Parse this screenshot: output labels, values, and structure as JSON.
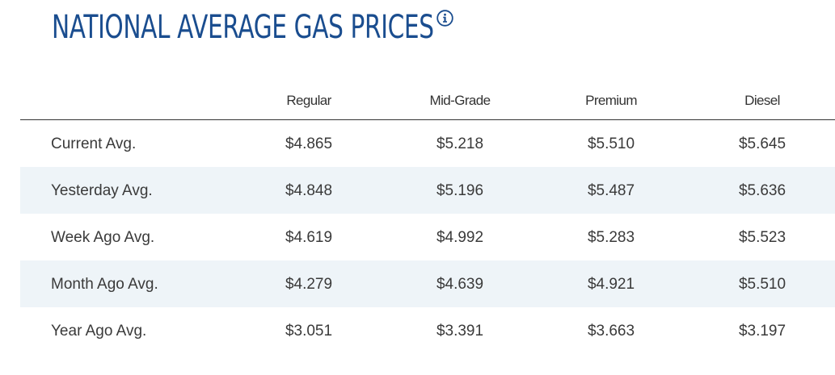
{
  "header": {
    "title": "NATIONAL AVERAGE GAS PRICES",
    "info_icon": "info-circle-icon",
    "title_color": "#1a4d8f"
  },
  "table": {
    "columns": [
      "",
      "Regular",
      "Mid-Grade",
      "Premium",
      "Diesel"
    ],
    "rows": [
      {
        "label": "Current Avg.",
        "values": [
          "$4.865",
          "$5.218",
          "$5.510",
          "$5.645"
        ]
      },
      {
        "label": "Yesterday Avg.",
        "values": [
          "$4.848",
          "$5.196",
          "$5.487",
          "$5.636"
        ]
      },
      {
        "label": "Week Ago Avg.",
        "values": [
          "$4.619",
          "$4.992",
          "$5.283",
          "$5.523"
        ]
      },
      {
        "label": "Month Ago Avg.",
        "values": [
          "$4.279",
          "$4.639",
          "$4.921",
          "$5.510"
        ]
      },
      {
        "label": "Year Ago Avg.",
        "values": [
          "$3.051",
          "$3.391",
          "$3.663",
          "$3.197"
        ]
      }
    ],
    "stripe_color": "#eef4f8"
  }
}
